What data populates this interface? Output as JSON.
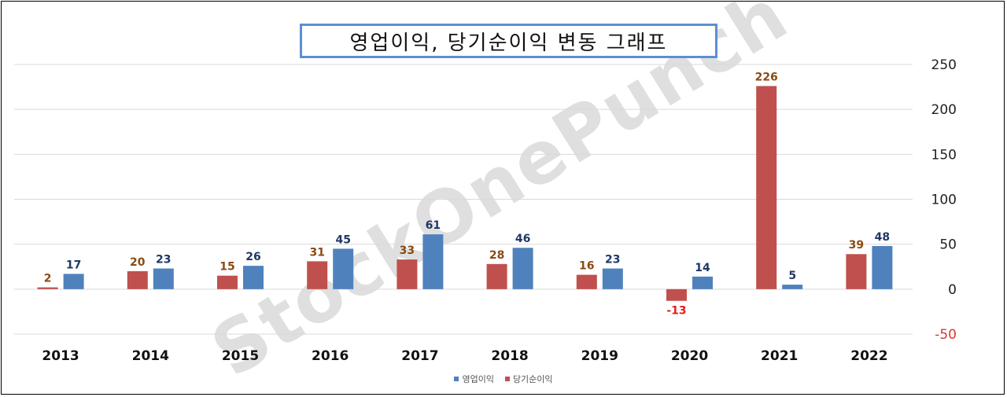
{
  "title": "영업이익, 당기순이익 변동 그래프",
  "watermark": "StockOnePunch",
  "chart_data": {
    "type": "bar",
    "title": "영업이익, 당기순이익 변동 그래프",
    "categories": [
      "2013",
      "2014",
      "2015",
      "2016",
      "2017",
      "2018",
      "2019",
      "2020",
      "2021",
      "2022"
    ],
    "series": [
      {
        "name": "당기순이익",
        "color": "#c0504d",
        "values": [
          2,
          20,
          15,
          31,
          33,
          28,
          16,
          -13,
          226,
          39
        ]
      },
      {
        "name": "영업이익",
        "color": "#4f81bd",
        "values": [
          17,
          23,
          26,
          45,
          61,
          46,
          23,
          14,
          5,
          48
        ]
      }
    ],
    "ylim": [
      -50,
      250
    ],
    "yticks": [
      250,
      200,
      150,
      100,
      50,
      0,
      -50
    ],
    "label_colors": {
      "net_income": "#8b4a14",
      "operating_income": "#1f3864",
      "negative": "#e02020"
    },
    "grid": true,
    "legend_position": "bottom",
    "legend_order": [
      "영업이익",
      "당기순이익"
    ]
  }
}
